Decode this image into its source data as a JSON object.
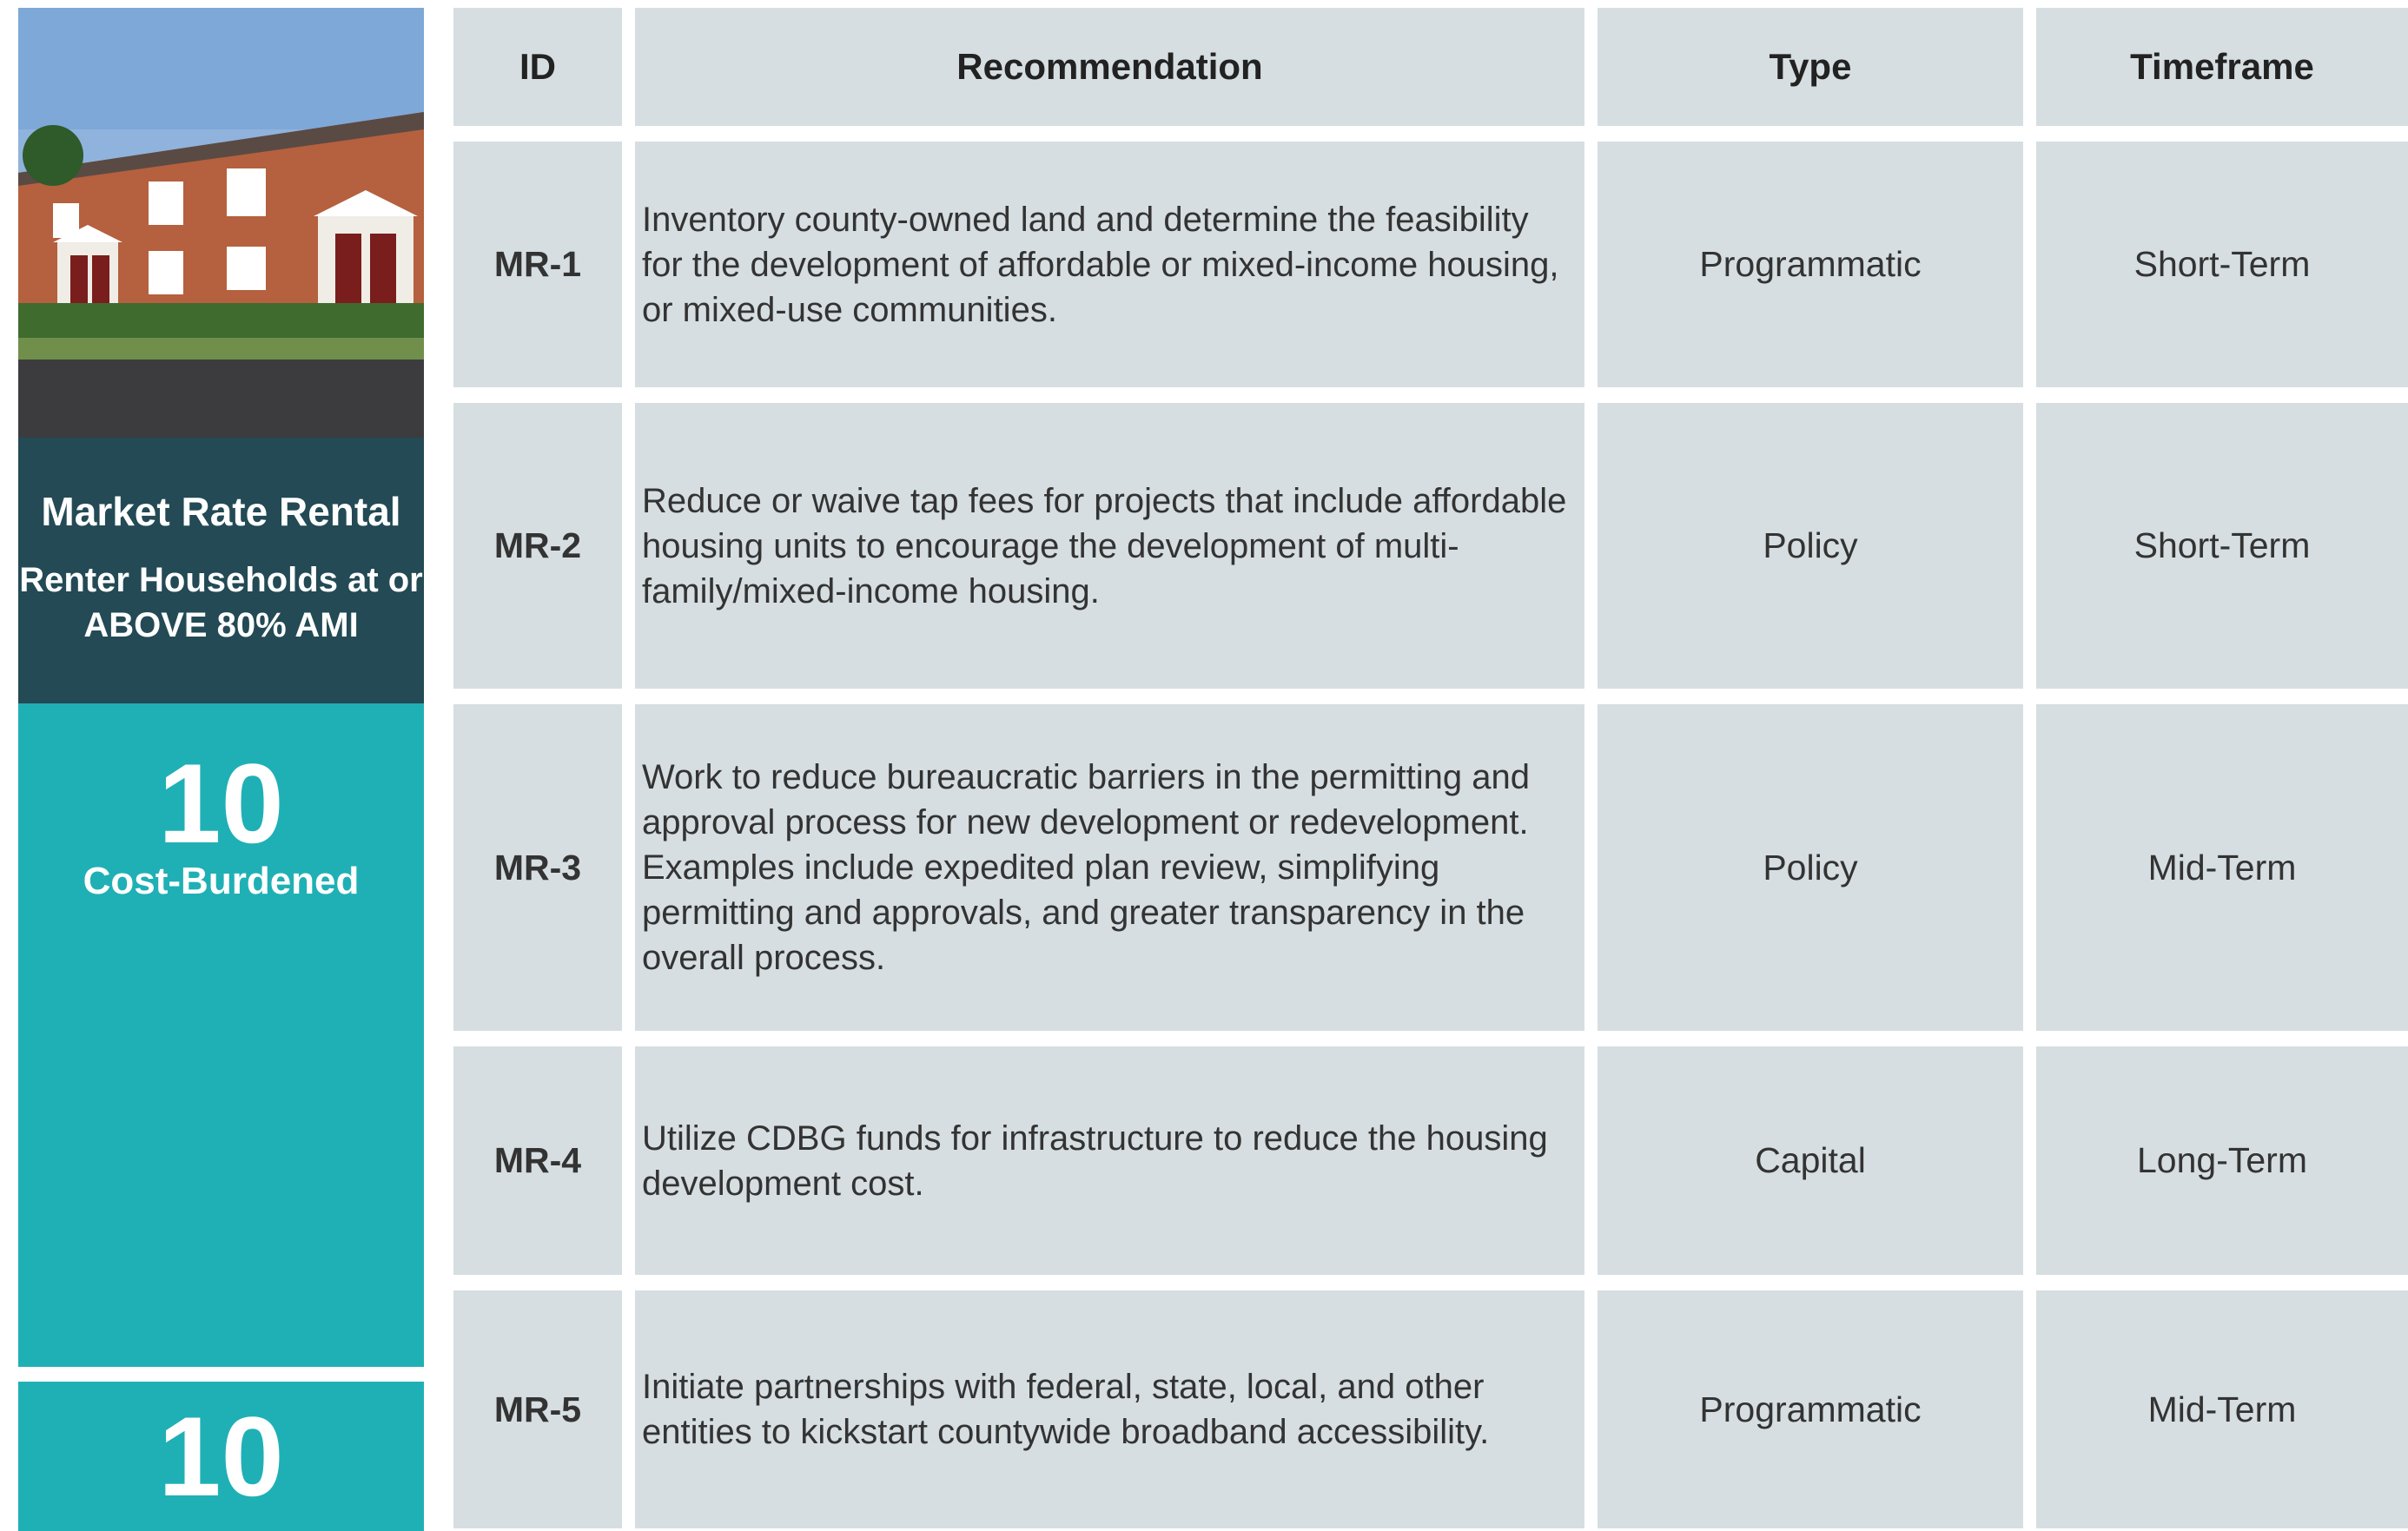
{
  "sidebar": {
    "title": "Market Rate Rental",
    "subtitle": "Renter Households at or ABOVE 80% AMI",
    "stat1": {
      "value": 10,
      "label": "Cost-Burdened"
    },
    "stat2": {
      "value": 10
    }
  },
  "table": {
    "header": [
      "ID",
      "Recommendation",
      "Type",
      "Timeframe"
    ],
    "rows": [
      [
        "MR-1",
        "Inventory county-owned land and determine the feasibility for the development of affordable or mixed-income housing, or mixed-use communities.",
        "Programmatic",
        "Short-Term"
      ],
      [
        "MR-2",
        "Reduce or waive tap fees for projects that include affordable housing units to encourage the development of multi-family/mixed-income housing.",
        "Policy",
        "Short-Term"
      ],
      [
        "MR-3",
        "Work to reduce bureaucratic barriers in the permitting and approval process for new development or redevelopment. Examples include expedited plan review, simplifying permitting and approvals, and greater transparency in the overall process.",
        "Policy",
        "Mid-Term"
      ],
      [
        "MR-4",
        "Utilize CDBG funds for infrastructure to reduce the housing development cost.",
        "Capital",
        "Long-Term"
      ],
      [
        "MR-5",
        "Initiate partnerships with federal, state, local, and other entities to kickstart countywide broadband accessibility.",
        "Programmatic",
        "Mid-Term"
      ]
    ]
  }
}
